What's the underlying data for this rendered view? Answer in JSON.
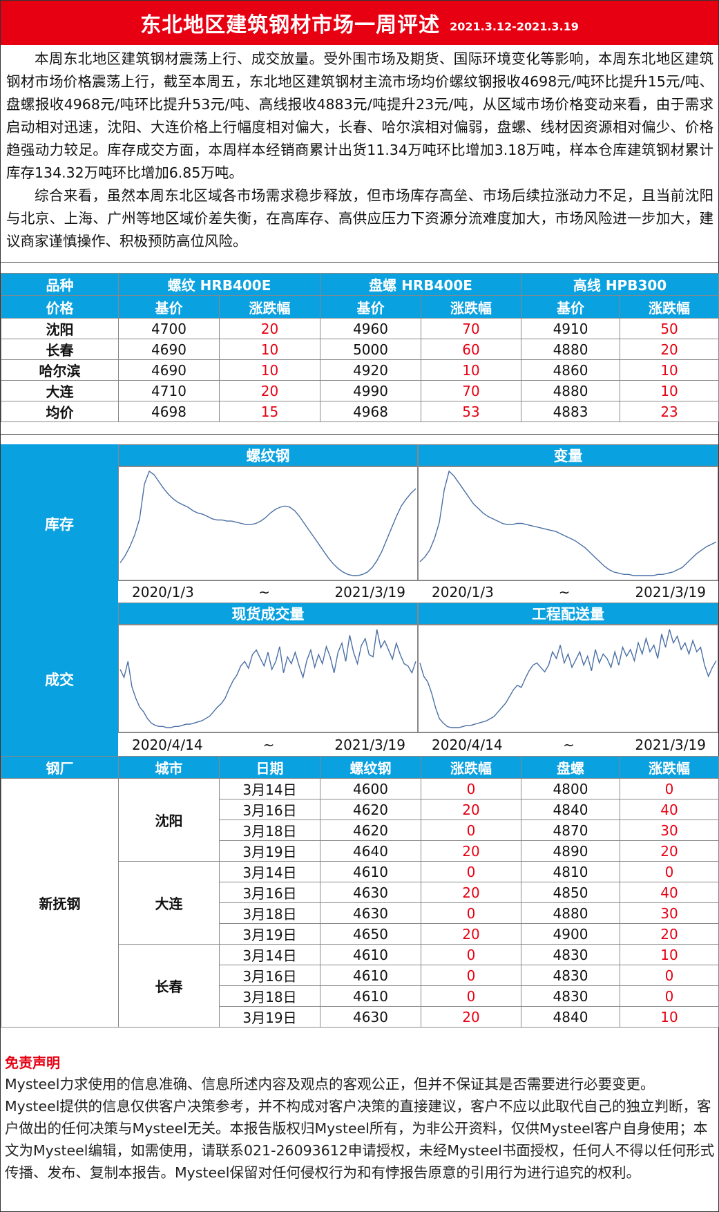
{
  "header": {
    "title": "东北地区建筑钢材市场一周评述",
    "date_range": "2021.3.12-2021.3.19"
  },
  "summary": {
    "paragraphs": [
      "本周东北地区建筑钢材震荡上行、成交放量。受外围市场及期货、国际环境变化等影响，本周东北地区建筑钢材市场价格震荡上行，截至本周五，东北地区建筑钢材主流市场均价螺纹钢报收4698元/吨环比提升15元/吨、盘螺报收4968元/吨环比提升53元/吨、高线报收4883元/吨提升23元/吨，从区域市场价格变动来看，由于需求启动相对迅速，沈阳、大连价格上行幅度相对偏大，长春、哈尔滨相对偏弱，盘螺、线材因资源相对偏少、价格趋强动力较足。库存成交方面，本周样本经销商累计出货11.34万吨环比增加3.18万吨，样本仓库建筑钢材累计库存134.32万吨环比增加6.85万吨。",
      "综合来看，虽然本周东北区域各市场需求稳步释放，但市场库存高垒、市场后续拉涨动力不足，且当前沈阳与北京、上海、广州等地区域价差失衡，在高库存、高供应压力下资源分流难度加大，市场风险进一步加大，建议商家谨慎操作、积极预防高位风险。"
    ]
  },
  "price_table": {
    "h_variety": "品种",
    "h_price": "价格",
    "products": [
      "螺纹  HRB400E",
      "盘螺  HRB400E",
      "高线  HPB300"
    ],
    "h_base": "基价",
    "h_change": "涨跌幅",
    "rows": [
      {
        "city": "沈阳",
        "vals": [
          "4700",
          "20",
          "4960",
          "70",
          "4910",
          "50"
        ]
      },
      {
        "city": "长春",
        "vals": [
          "4690",
          "10",
          "5000",
          "60",
          "4880",
          "20"
        ]
      },
      {
        "city": "哈尔滨",
        "vals": [
          "4690",
          "10",
          "4920",
          "10",
          "4860",
          "10"
        ]
      },
      {
        "city": "大连",
        "vals": [
          "4710",
          "20",
          "4990",
          "70",
          "4880",
          "10"
        ]
      },
      {
        "city": "均价",
        "vals": [
          "4698",
          "15",
          "4968",
          "53",
          "4883",
          "23"
        ]
      }
    ]
  },
  "charts": {
    "inventory_label": "库存",
    "volume_label": "成交",
    "tilde": "~",
    "inv_start": "2020/1/3",
    "inv_end": "2021/3/19",
    "vol_start": "2020/4/14",
    "vol_end": "2021/3/19",
    "titles": [
      "螺纹钢",
      "变量",
      "现货成交量",
      "工程配送量"
    ],
    "line_color": "#4a6fa5"
  },
  "chart_data": [
    {
      "type": "line",
      "title": "螺纹钢",
      "x_range": [
        "2020/1/3",
        "2021/3/19"
      ],
      "values": [
        18,
        24,
        32,
        42,
        56,
        86,
        97,
        94,
        88,
        82,
        77,
        73,
        70,
        68,
        66,
        63,
        61,
        60,
        58,
        56,
        55,
        55,
        54,
        54,
        53,
        52,
        51,
        51,
        52,
        54,
        57,
        61,
        64,
        66,
        67,
        66,
        63,
        58,
        52,
        46,
        40,
        34,
        28,
        22,
        17,
        13,
        10,
        8,
        7,
        7,
        8,
        10,
        14,
        20,
        28,
        38,
        48,
        58,
        67,
        73,
        78,
        82
      ]
    },
    {
      "type": "line",
      "title": "变量",
      "x_range": [
        "2020/1/3",
        "2021/3/19"
      ],
      "values": [
        18,
        22,
        28,
        38,
        52,
        80,
        96,
        92,
        86,
        80,
        74,
        68,
        64,
        60,
        57,
        55,
        53,
        51,
        50,
        50,
        51,
        51,
        50,
        49,
        48,
        47,
        46,
        45,
        44,
        42,
        40,
        38,
        36,
        33,
        30,
        26,
        22,
        18,
        14,
        11,
        9,
        8,
        7,
        7,
        6,
        6,
        6,
        6,
        6,
        7,
        7,
        8,
        9,
        11,
        13,
        17,
        21,
        25,
        28,
        31,
        33,
        35
      ]
    },
    {
      "type": "line",
      "title": "现货成交量",
      "x_range": [
        "2020/4/14",
        "2021/3/19"
      ],
      "values": [
        55,
        48,
        62,
        40,
        30,
        22,
        18,
        12,
        8,
        6,
        5,
        5,
        4,
        4,
        5,
        5,
        6,
        7,
        7,
        8,
        9,
        10,
        12,
        14,
        18,
        22,
        25,
        30,
        38,
        45,
        50,
        58,
        62,
        56,
        68,
        72,
        65,
        58,
        70,
        55,
        62,
        75,
        52,
        66,
        60,
        70,
        58,
        48,
        63,
        72,
        57,
        68,
        60,
        75,
        66,
        52,
        70,
        78,
        62,
        85,
        70,
        60,
        76,
        82,
        68,
        66,
        90,
        74,
        80,
        72,
        64,
        78,
        68,
        60,
        58,
        52,
        62
      ]
    },
    {
      "type": "line",
      "title": "工程配送量",
      "x_range": [
        "2020/4/14",
        "2021/3/19"
      ],
      "values": [
        62,
        50,
        45,
        35,
        22,
        12,
        8,
        5,
        4,
        4,
        4,
        5,
        6,
        6,
        7,
        8,
        9,
        10,
        12,
        14,
        18,
        22,
        26,
        32,
        38,
        42,
        40,
        48,
        55,
        60,
        62,
        58,
        54,
        60,
        72,
        66,
        78,
        62,
        70,
        58,
        65,
        72,
        60,
        68,
        55,
        74,
        62,
        70,
        66,
        58,
        72,
        60,
        76,
        68,
        74,
        64,
        80,
        70,
        84,
        72,
        78,
        66,
        88,
        76,
        92,
        80,
        86,
        74,
        80,
        70,
        82,
        72,
        76,
        60,
        50,
        58,
        64
      ]
    }
  ],
  "mill_table": {
    "headers": [
      "钢厂",
      "城市",
      "日期",
      "螺纹钢",
      "涨跌幅",
      "盘螺",
      "涨跌幅"
    ],
    "mill": "新抚钢",
    "groups": [
      {
        "city": "沈阳",
        "rows": [
          [
            "3月14日",
            "4600",
            "0",
            "4800",
            "0"
          ],
          [
            "3月16日",
            "4620",
            "20",
            "4840",
            "40"
          ],
          [
            "3月18日",
            "4620",
            "0",
            "4870",
            "30"
          ],
          [
            "3月19日",
            "4640",
            "20",
            "4890",
            "20"
          ]
        ]
      },
      {
        "city": "大连",
        "rows": [
          [
            "3月14日",
            "4610",
            "0",
            "4810",
            "0"
          ],
          [
            "3月16日",
            "4630",
            "20",
            "4850",
            "40"
          ],
          [
            "3月18日",
            "4630",
            "0",
            "4880",
            "30"
          ],
          [
            "3月19日",
            "4650",
            "20",
            "4900",
            "20"
          ]
        ]
      },
      {
        "city": "长春",
        "rows": [
          [
            "3月14日",
            "4610",
            "0",
            "4830",
            "10"
          ],
          [
            "3月16日",
            "4610",
            "0",
            "4830",
            "0"
          ],
          [
            "3月18日",
            "4610",
            "0",
            "4830",
            "0"
          ],
          [
            "3月19日",
            "4630",
            "20",
            "4840",
            "10"
          ]
        ]
      }
    ]
  },
  "disclaimer": {
    "title": "免责声明",
    "lines": [
      "Mysteel力求使用的信息准确、信息所述内容及观点的客观公正，但并不保证其是否需要进行必要变更。",
      "Mysteel提供的信息仅供客户决策参考，并不构成对客户决策的直接建议，客户不应以此取代自己的独立判断，客户做出的任何决策与Mysteel无关。本报告版权归Mysteel所有，为非公开资料，仅供Mysteel客户自身使用；本文为Mysteel编辑，如需使用，请联系021-26093612申请授权，未经Mysteel书面授权，任何人不得以任何形式传播、发布、复制本报告。Mysteel保留对任何侵权行为和有悖报告原意的引用行为进行追究的权利。"
    ]
  }
}
